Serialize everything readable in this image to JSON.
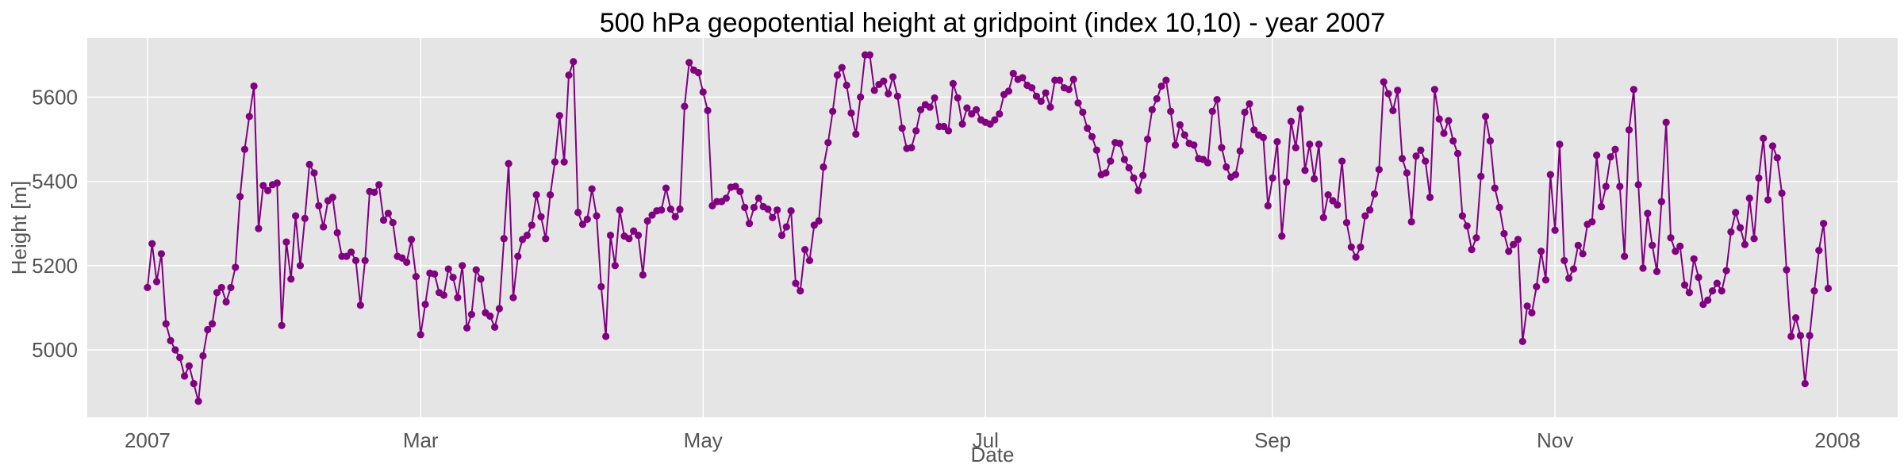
{
  "chart_data": {
    "type": "line",
    "title": "500 hPa geopotential height at gridpoint (index 10,10) - year 2007",
    "xlabel": "Date",
    "ylabel": "Height [m]",
    "series_color": "#800080",
    "background_color": "#e5e5e5",
    "grid": true,
    "xlim": [
      "2006-12-19",
      "2008-01-14"
    ],
    "ylim": [
      4840,
      5740
    ],
    "x_ticks": [
      {
        "date": "2007-01-01",
        "label": "2007"
      },
      {
        "date": "2007-03-01",
        "label": "Mar"
      },
      {
        "date": "2007-05-01",
        "label": "May"
      },
      {
        "date": "2007-07-01",
        "label": "Jul"
      },
      {
        "date": "2007-09-01",
        "label": "Sep"
      },
      {
        "date": "2007-11-01",
        "label": "Nov"
      },
      {
        "date": "2008-01-01",
        "label": "2008"
      }
    ],
    "y_ticks": [
      5000,
      5200,
      5400,
      5600
    ],
    "series": [
      {
        "start_date": "2007-01-01",
        "interval_days": 1,
        "values": [
          5148,
          5252,
          5162,
          5228,
          5062,
          5022,
          5000,
          4982,
          4938,
          4962,
          4920,
          4878,
          4986,
          5048,
          5062,
          5136,
          5148,
          5114,
          5148,
          5196,
          5364,
          5476,
          5554,
          5626,
          5288,
          5390,
          5378,
          5392,
          5396,
          5058,
          5256,
          5168,
          5318,
          5200,
          5312,
          5440,
          5420,
          5342,
          5292,
          5354,
          5362,
          5278,
          5222,
          5222,
          5232,
          5212,
          5106,
          5212,
          5376,
          5374,
          5392,
          5308,
          5324,
          5302,
          5222,
          5218,
          5208,
          5262,
          5174,
          5036,
          5108,
          5182,
          5180,
          5136,
          5130,
          5192,
          5172,
          5124,
          5200,
          5052,
          5084,
          5190,
          5168,
          5088,
          5080,
          5054,
          5098,
          5264,
          5442,
          5124,
          5222,
          5262,
          5272,
          5296,
          5368,
          5316,
          5264,
          5368,
          5446,
          5556,
          5446,
          5652,
          5684,
          5326,
          5298,
          5310,
          5382,
          5318,
          5150,
          5032,
          5272,
          5200,
          5332,
          5270,
          5264,
          5282,
          5272,
          5178,
          5306,
          5320,
          5330,
          5332,
          5384,
          5334,
          5316,
          5334,
          5578,
          5682,
          5664,
          5658,
          5612,
          5568,
          5342,
          5352,
          5352,
          5360,
          5386,
          5388,
          5376,
          5338,
          5300,
          5338,
          5360,
          5340,
          5334,
          5314,
          5332,
          5272,
          5292,
          5330,
          5158,
          5140,
          5238,
          5212,
          5296,
          5306,
          5434,
          5492,
          5566,
          5652,
          5670,
          5628,
          5562,
          5512,
          5600,
          5700,
          5700,
          5616,
          5630,
          5638,
          5608,
          5648,
          5602,
          5526,
          5478,
          5480,
          5520,
          5570,
          5582,
          5576,
          5598,
          5530,
          5530,
          5520,
          5632,
          5598,
          5536,
          5574,
          5560,
          5570,
          5546,
          5540,
          5536,
          5546,
          5560,
          5606,
          5614,
          5656,
          5642,
          5646,
          5628,
          5622,
          5602,
          5590,
          5610,
          5576,
          5640,
          5640,
          5622,
          5618,
          5642,
          5586,
          5564,
          5526,
          5506,
          5474,
          5416,
          5420,
          5448,
          5492,
          5490,
          5452,
          5432,
          5408,
          5378,
          5414,
          5500,
          5570,
          5596,
          5626,
          5640,
          5566,
          5486,
          5534,
          5510,
          5490,
          5486,
          5454,
          5452,
          5444,
          5566,
          5594,
          5480,
          5434,
          5410,
          5416,
          5472,
          5564,
          5584,
          5522,
          5510,
          5504,
          5342,
          5408,
          5494,
          5270,
          5398,
          5542,
          5480,
          5572,
          5426,
          5488,
          5406,
          5488,
          5314,
          5368,
          5354,
          5344,
          5448,
          5302,
          5244,
          5220,
          5244,
          5318,
          5332,
          5370,
          5428,
          5636,
          5608,
          5568,
          5616,
          5454,
          5420,
          5304,
          5460,
          5474,
          5448,
          5362,
          5618,
          5548,
          5514,
          5544,
          5496,
          5466,
          5318,
          5294,
          5238,
          5266,
          5412,
          5554,
          5496,
          5384,
          5338,
          5276,
          5234,
          5250,
          5262,
          5020,
          5104,
          5088,
          5150,
          5234,
          5166,
          5416,
          5284,
          5488,
          5212,
          5170,
          5192,
          5248,
          5228,
          5298,
          5304,
          5462,
          5340,
          5388,
          5458,
          5476,
          5388,
          5222,
          5522,
          5618,
          5392,
          5194,
          5324,
          5248,
          5186,
          5352,
          5540,
          5266,
          5234,
          5246,
          5154,
          5136,
          5216,
          5172,
          5108,
          5118,
          5140,
          5158,
          5140,
          5188,
          5280,
          5326,
          5290,
          5250,
          5360,
          5264,
          5408,
          5502,
          5356,
          5484,
          5456,
          5372,
          5190,
          5032,
          5076,
          5034,
          4920,
          5034,
          5140,
          5236,
          5300,
          5146
        ]
      }
    ]
  }
}
